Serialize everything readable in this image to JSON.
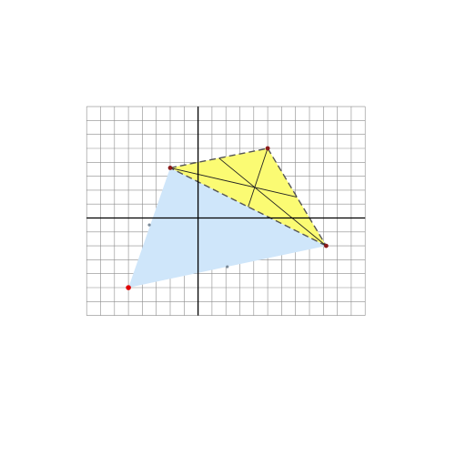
{
  "figure": {
    "description_free": true,
    "grid": {
      "x_range": [
        -8,
        12
      ],
      "y_range": [
        -7,
        8
      ],
      "step": 1
    },
    "axes": {
      "show": true
    },
    "colors": {
      "grid": "#8c8c8c",
      "axis": "#000000",
      "outer_fill": "#cfe6fa",
      "inner_fill": "#fbfb73",
      "dashed_edge": "#555555",
      "vertex_red": "#e00000",
      "vertex_dark": "#8b1a1a",
      "point_gray": "#7a8a99",
      "cevian": "#222222"
    },
    "points": {
      "P": [
        -5,
        -5
      ],
      "A": [
        -2,
        3.6
      ],
      "B": [
        5,
        5
      ],
      "C": [
        9.2,
        -2
      ],
      "M1": [
        -3.5,
        -0.5
      ],
      "M2": [
        2.1,
        -3.5
      ]
    },
    "outer_polygon": [
      "P",
      "A",
      "C"
    ],
    "inner_triangle": [
      "A",
      "B",
      "C"
    ],
    "midpoints": {
      "AB": [
        1.5,
        4.3
      ],
      "BC": [
        7.1,
        1.5
      ],
      "CA": [
        3.6,
        0.8
      ]
    }
  }
}
